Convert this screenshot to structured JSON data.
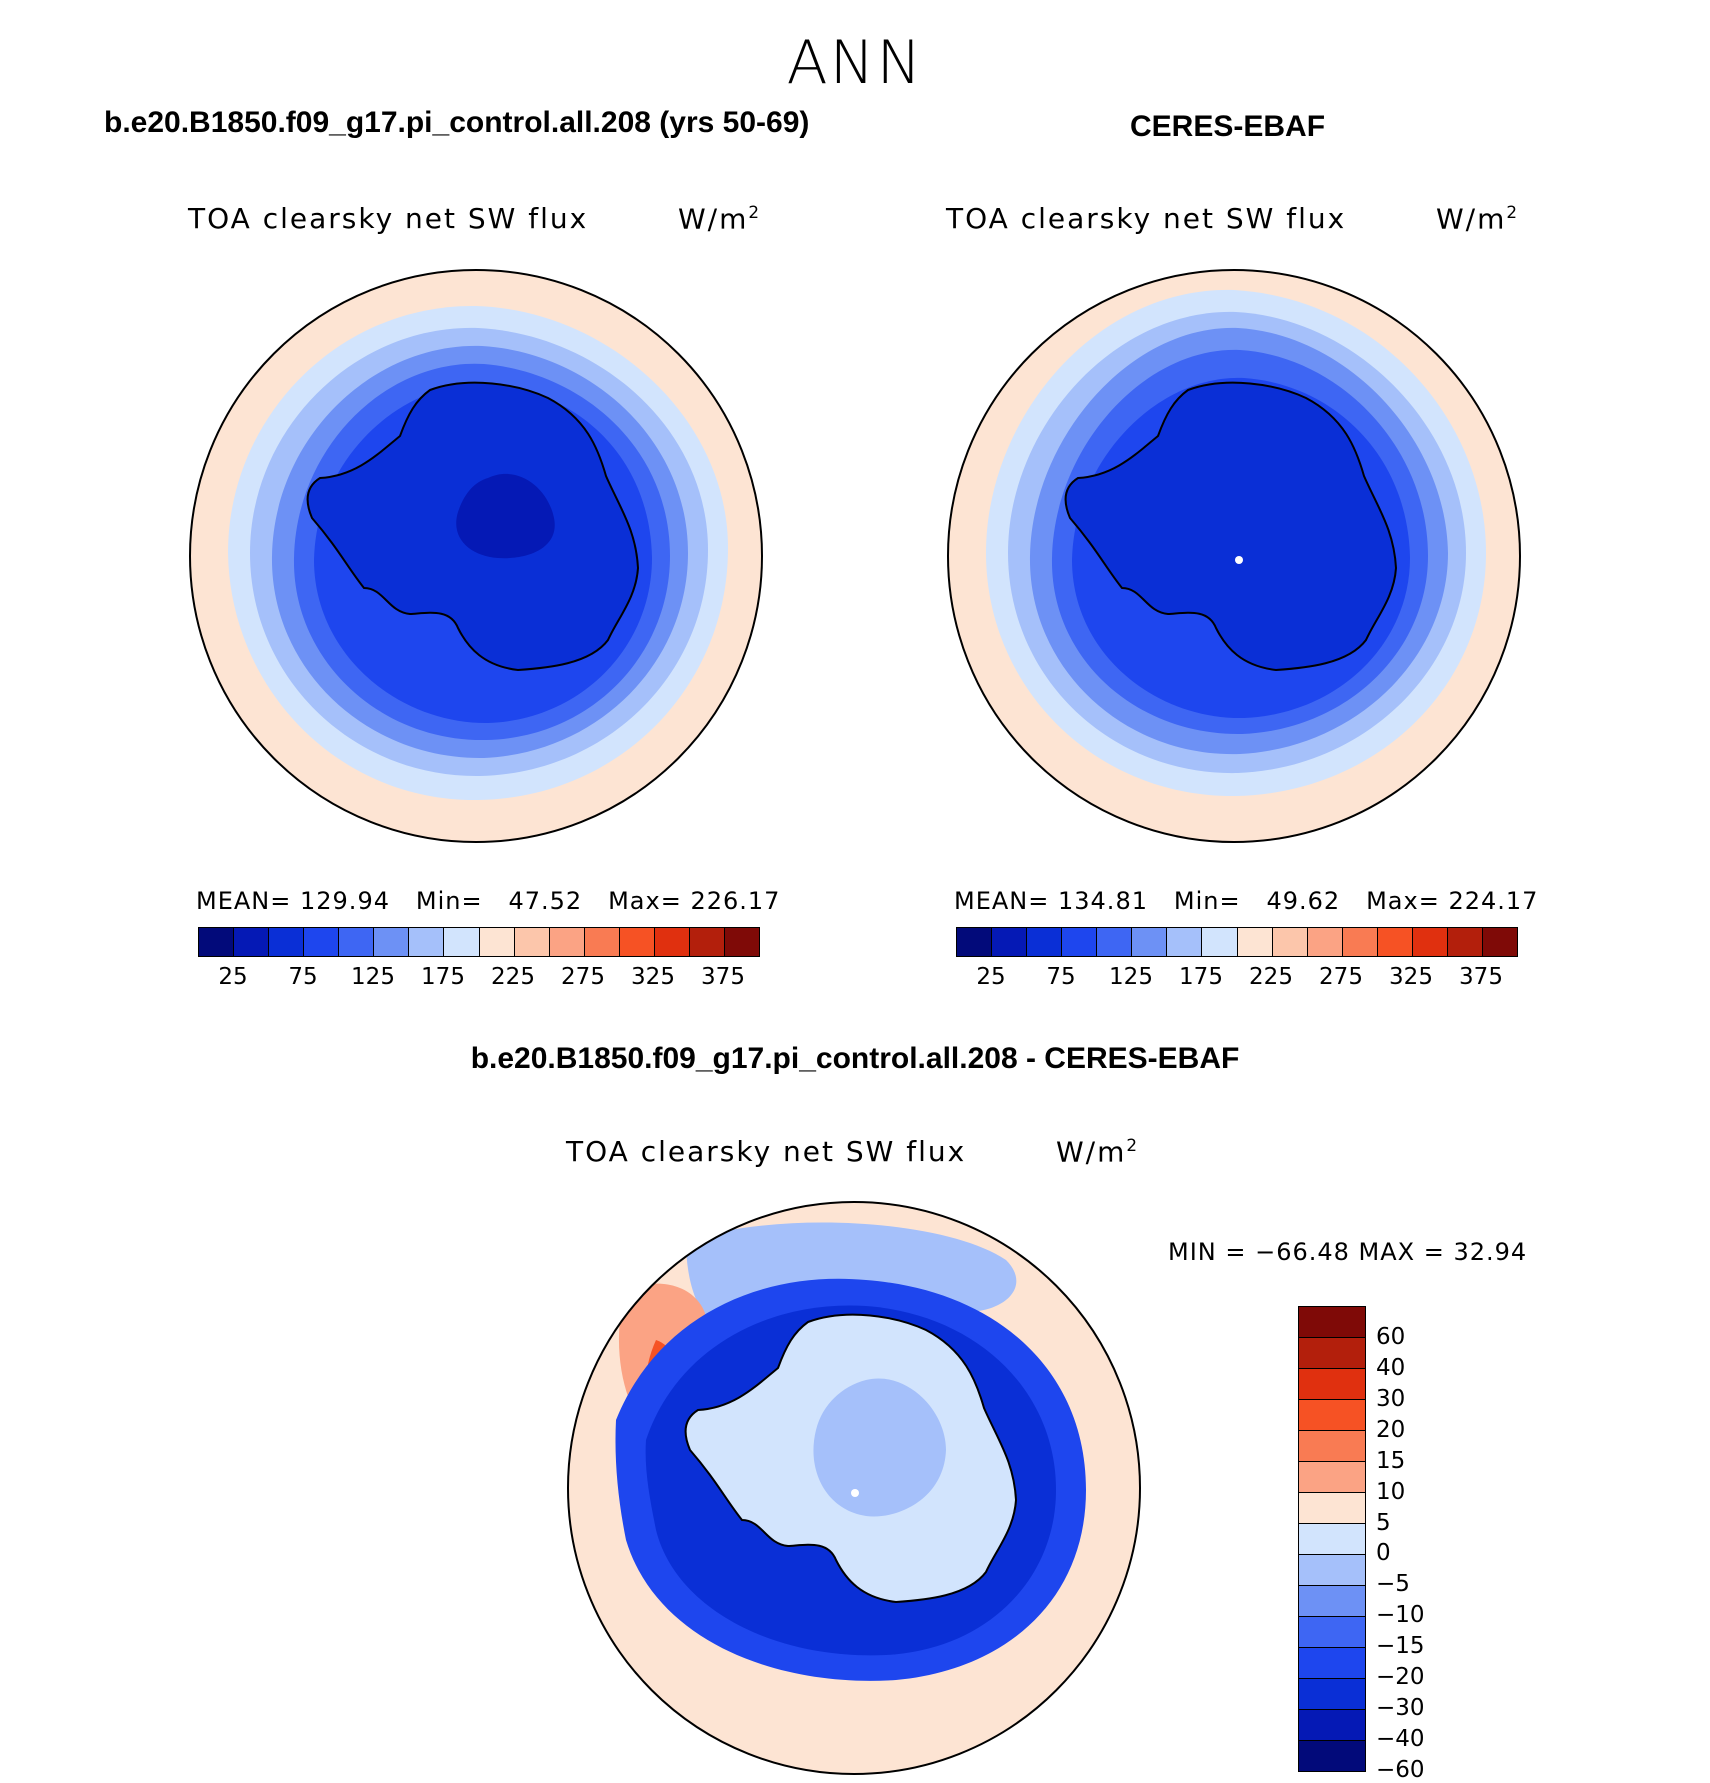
{
  "season": "ANN",
  "panels": {
    "model": {
      "case_title": "b.e20.B1850.f09_g17.pi_control.all.208 (yrs 50-69)",
      "variable": "TOA clearsky net SW flux",
      "units_base": "W/m",
      "units_sup": "2",
      "stats": {
        "mean_label": "MEAN=",
        "mean": "129.94",
        "min_label": "Min=",
        "min": "47.52",
        "max_label": "Max=",
        "max": "226.17"
      }
    },
    "obs": {
      "case_title": "CERES-EBAF",
      "variable": "TOA clearsky net SW flux",
      "units_base": "W/m",
      "units_sup": "2",
      "stats": {
        "mean_label": "MEAN=",
        "mean": "134.81",
        "min_label": "Min=",
        "min": "49.62",
        "max_label": "Max=",
        "max": "224.17"
      }
    },
    "diff": {
      "case_title": "b.e20.B1850.f09_g17.pi_control.all.208 - CERES-EBAF",
      "variable": "TOA clearsky net SW flux",
      "units_base": "W/m",
      "units_sup": "2",
      "minmax": "MIN = −66.48 MAX =   32.94"
    }
  },
  "colorbar_abs": {
    "colors": [
      "#020a7a",
      "#0519b5",
      "#0a2fd6",
      "#1e46ee",
      "#3e66f3",
      "#6d91f5",
      "#a5c0fa",
      "#d2e4fd",
      "#fde4d3",
      "#fcc6ab",
      "#fba384",
      "#f97b53",
      "#f65224",
      "#e0300f",
      "#b31f0c",
      "#7f0a07"
    ],
    "ticks": [
      "25",
      "75",
      "125",
      "175",
      "225",
      "275",
      "325",
      "375"
    ]
  },
  "colorbar_diff": {
    "colors": [
      "#7f0a07",
      "#b31f0c",
      "#e0300f",
      "#f65224",
      "#f97b53",
      "#fba384",
      "#fde4d3",
      "#d2e4fd",
      "#a5c0fa",
      "#6d91f5",
      "#3e66f3",
      "#1e46ee",
      "#0a2fd6",
      "#0519b5",
      "#020a7a"
    ],
    "ticks": [
      "60",
      "40",
      "30",
      "20",
      "15",
      "10",
      "5",
      "0",
      "−5",
      "−10",
      "−15",
      "−20",
      "−30",
      "−40",
      "−60"
    ]
  }
}
